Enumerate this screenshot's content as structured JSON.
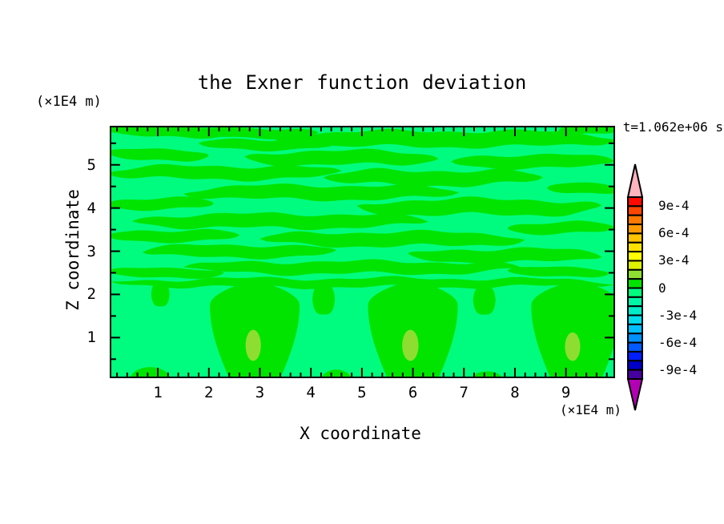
{
  "title": "the Exner function deviation",
  "time_label": "t=1.062e+06 s",
  "axes": {
    "x": {
      "label": "X coordinate",
      "unit": "(×1E4 m)",
      "ticks": [
        1,
        2,
        3,
        4,
        5,
        6,
        7,
        8,
        9
      ],
      "range": [
        0.05,
        9.95
      ],
      "minor_step": 0.2
    },
    "z": {
      "label": "Z coordinate",
      "unit": "(×1E4 m)",
      "ticks": [
        1,
        2,
        3,
        4,
        5
      ],
      "range": [
        0.05,
        5.9
      ],
      "minor_step": 0.5
    }
  },
  "colorbar": {
    "labels": [
      "9e-4",
      "6e-4",
      "3e-4",
      "0",
      "-3e-4",
      "-6e-4",
      "-9e-4"
    ],
    "segment_colors": [
      "#FF0A00",
      "#FF4600",
      "#FF7800",
      "#FF9B00",
      "#FFC300",
      "#FFE100",
      "#FFFF00",
      "#DCF000",
      "#8EDE32",
      "#00E400",
      "#00FC7E",
      "#00F5A5",
      "#00EBC8",
      "#00DCEB",
      "#00BEFF",
      "#0091FF",
      "#005AFF",
      "#001EFF",
      "#0000C8",
      "#4600A0"
    ],
    "cap_top_color": "#FFB4BE",
    "cap_bottom_color": "#B400B4"
  },
  "chart_data": {
    "type": "filled_contour",
    "title": "the Exner function deviation",
    "xlabel": "X coordinate (×1E4 m)",
    "ylabel": "Z coordinate (×1E4 m)",
    "time": "t=1.062e+06 s",
    "contour_interval": 0.0001,
    "levels": [
      0.001,
      0.0009,
      0.0008,
      0.0007,
      0.0006,
      0.0005,
      0.0004,
      0.0003,
      0.0002,
      0.0001,
      0,
      -0.0001,
      -0.0002,
      -0.0003,
      -0.0004,
      -0.0005,
      -0.0006,
      -0.0007,
      -0.0008,
      -0.0009,
      -0.001
    ],
    "field_colors": {
      "background": "#00FC7E",
      "band": "#00E400",
      "core": "#8EDE32"
    },
    "bands": [
      [
        1.3,
        5.78,
        1.35,
        0.13,
        0.05,
        0.5
      ],
      [
        2.95,
        5.74,
        1.2,
        0.11,
        0.04,
        3.7
      ],
      [
        6.6,
        5.6,
        3.4,
        0.18,
        0.06,
        2.1
      ],
      [
        9.45,
        5.82,
        0.6,
        0.12,
        0.04,
        5.0
      ],
      [
        3.15,
        5.48,
        1.35,
        0.12,
        0.05,
        4.0
      ],
      [
        1.0,
        5.24,
        1.0,
        0.13,
        0.05,
        1.2
      ],
      [
        4.6,
        5.16,
        1.9,
        0.16,
        0.06,
        3.3
      ],
      [
        8.35,
        5.08,
        1.6,
        0.15,
        0.05,
        0.2
      ],
      [
        2.3,
        4.82,
        2.3,
        0.15,
        0.06,
        5.1
      ],
      [
        6.4,
        4.7,
        2.15,
        0.17,
        0.07,
        2.8
      ],
      [
        9.35,
        4.45,
        0.72,
        0.12,
        0.04,
        1.0
      ],
      [
        4.2,
        4.36,
        2.7,
        0.16,
        0.06,
        0.9
      ],
      [
        1.05,
        4.1,
        1.05,
        0.13,
        0.05,
        3.9
      ],
      [
        7.3,
        4.02,
        2.4,
        0.18,
        0.07,
        4.6
      ],
      [
        3.4,
        3.7,
        2.9,
        0.16,
        0.06,
        1.7
      ],
      [
        8.9,
        3.54,
        1.05,
        0.13,
        0.05,
        5.6
      ],
      [
        1.3,
        3.36,
        1.3,
        0.13,
        0.05,
        2.4
      ],
      [
        5.6,
        3.28,
        2.6,
        0.16,
        0.06,
        0.3
      ],
      [
        2.6,
        3.0,
        1.9,
        0.14,
        0.05,
        4.4
      ],
      [
        7.8,
        2.9,
        1.9,
        0.15,
        0.06,
        1.5
      ],
      [
        4.8,
        2.62,
        3.3,
        0.14,
        0.06,
        3.0
      ],
      [
        1.15,
        2.5,
        1.15,
        0.11,
        0.04,
        0.7
      ],
      [
        8.85,
        2.52,
        1.0,
        0.11,
        0.04,
        2.2
      ],
      [
        5.0,
        2.27,
        4.95,
        0.1,
        0.06,
        1.9
      ],
      [
        4.25,
        1.9,
        0.22,
        0.35,
        0.02,
        0.8
      ],
      [
        7.4,
        1.88,
        0.22,
        0.33,
        0.02,
        1.6
      ],
      [
        1.05,
        2.02,
        0.18,
        0.28,
        0.02,
        2.9
      ]
    ],
    "plume_shape": {
      "zb": 0.05,
      "zPeak": 1.75,
      "zt": 2.33,
      "wBot": 0.5,
      "wMax": 0.88
    },
    "plume_centers": [
      2.9,
      6.0,
      9.2
    ],
    "cores": [
      [
        2.87,
        0.82,
        0.15,
        0.36
      ],
      [
        5.95,
        0.82,
        0.16,
        0.36
      ],
      [
        9.13,
        0.79,
        0.15,
        0.33
      ]
    ],
    "mounds": [
      [
        0.85,
        0.4,
        0.24
      ],
      [
        4.5,
        0.3,
        0.18
      ],
      [
        7.45,
        0.32,
        0.14
      ]
    ]
  }
}
